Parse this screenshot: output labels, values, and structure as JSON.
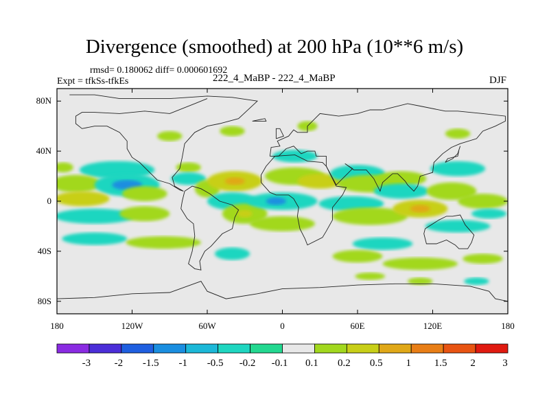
{
  "chart_data": {
    "type": "heatmap",
    "title": "Divergence (smoothed) at 200 hPa (10**6 m/s)",
    "stats_line": "rmsd= 0.180062 diff= 0.000601692",
    "experiment_label": "Expt = tfkSs-tfkEs",
    "case_label": "222_4_MaBP - 222_4_MaBP",
    "season_label": "DJF",
    "xlim": [
      -180,
      180
    ],
    "ylim": [
      -90,
      90
    ],
    "x_ticks": [
      {
        "value": -180,
        "label": "180"
      },
      {
        "value": -120,
        "label": "120W"
      },
      {
        "value": -60,
        "label": "60W"
      },
      {
        "value": 0,
        "label": "0"
      },
      {
        "value": 60,
        "label": "60E"
      },
      {
        "value": 120,
        "label": "120E"
      },
      {
        "value": 180,
        "label": "180"
      }
    ],
    "y_ticks": [
      {
        "value": 80,
        "label": "80N"
      },
      {
        "value": 40,
        "label": "40N"
      },
      {
        "value": 0,
        "label": "0"
      },
      {
        "value": -40,
        "label": "40S"
      },
      {
        "value": -80,
        "label": "80S"
      }
    ],
    "colorbar": {
      "labels": [
        "-3",
        "-2",
        "-1.5",
        "-1",
        "-0.5",
        "-0.2",
        "-0.1",
        "0.1",
        "0.2",
        "0.5",
        "1",
        "1.5",
        "2",
        "3"
      ],
      "colors": [
        "#8a2be2",
        "#4b2ed8",
        "#1f5fe0",
        "#1a8ee0",
        "#1cb8d8",
        "#1fd6c0",
        "#23d890",
        "#e8e8e8",
        "#a2d81e",
        "#c8cf18",
        "#e0a818",
        "#e87e16",
        "#e85412",
        "#e01a10"
      ]
    },
    "field_blobs": [
      {
        "lon": -175,
        "lat": 27,
        "rx": 8,
        "ry": 4,
        "level": "0.2"
      },
      {
        "lon": -132,
        "lat": 25,
        "rx": 30,
        "ry": 7,
        "level": "-0.2"
      },
      {
        "lon": -165,
        "lat": 14,
        "rx": 20,
        "ry": 7,
        "level": "0.2"
      },
      {
        "lon": -124,
        "lat": 13,
        "rx": 26,
        "ry": 9,
        "level": "-0.2"
      },
      {
        "lon": -124,
        "lat": 13,
        "rx": 12,
        "ry": 4,
        "level": "-1"
      },
      {
        "lon": -160,
        "lat": 2,
        "rx": 22,
        "ry": 6,
        "level": "0.5"
      },
      {
        "lon": -110,
        "lat": 6,
        "rx": 18,
        "ry": 6,
        "level": "0.2"
      },
      {
        "lon": -150,
        "lat": -12,
        "rx": 32,
        "ry": 6,
        "level": "-0.2"
      },
      {
        "lon": -110,
        "lat": -10,
        "rx": 20,
        "ry": 6,
        "level": "0.2"
      },
      {
        "lon": -150,
        "lat": -30,
        "rx": 26,
        "ry": 5,
        "level": "-0.2"
      },
      {
        "lon": -95,
        "lat": -33,
        "rx": 30,
        "ry": 5,
        "level": "0.2"
      },
      {
        "lon": -40,
        "lat": -42,
        "rx": 14,
        "ry": 5,
        "level": "-0.2"
      },
      {
        "lon": -75,
        "lat": 27,
        "rx": 10,
        "ry": 4,
        "level": "0.2"
      },
      {
        "lon": -75,
        "lat": 18,
        "rx": 14,
        "ry": 5,
        "level": "-0.2"
      },
      {
        "lon": -60,
        "lat": 10,
        "rx": 10,
        "ry": 7,
        "level": "0.2"
      },
      {
        "lon": -38,
        "lat": 16,
        "rx": 22,
        "ry": 8,
        "level": "0.5"
      },
      {
        "lon": -38,
        "lat": 16,
        "rx": 8,
        "ry": 3,
        "level": "1"
      },
      {
        "lon": -40,
        "lat": 0,
        "rx": 20,
        "ry": 7,
        "level": "-0.2"
      },
      {
        "lon": -30,
        "lat": -10,
        "rx": 18,
        "ry": 8,
        "level": "0.2"
      },
      {
        "lon": -30,
        "lat": -10,
        "rx": 6,
        "ry": 3,
        "level": "0.5"
      },
      {
        "lon": 0,
        "lat": 0,
        "rx": 28,
        "ry": 7,
        "level": "-0.2"
      },
      {
        "lon": -5,
        "lat": 0,
        "rx": 8,
        "ry": 3,
        "level": "-1"
      },
      {
        "lon": 0,
        "lat": -18,
        "rx": 26,
        "ry": 6,
        "level": "0.2"
      },
      {
        "lon": 10,
        "lat": 36,
        "rx": 18,
        "ry": 5,
        "level": "-0.2"
      },
      {
        "lon": 10,
        "lat": 20,
        "rx": 24,
        "ry": 7,
        "level": "0.2"
      },
      {
        "lon": 30,
        "lat": 16,
        "rx": 18,
        "ry": 6,
        "level": "0.5"
      },
      {
        "lon": 60,
        "lat": 22,
        "rx": 22,
        "ry": 7,
        "level": "-0.2"
      },
      {
        "lon": 70,
        "lat": 14,
        "rx": 26,
        "ry": 7,
        "level": "0.2"
      },
      {
        "lon": 95,
        "lat": 18,
        "rx": 20,
        "ry": 6,
        "level": "0.2"
      },
      {
        "lon": 95,
        "lat": 8,
        "rx": 22,
        "ry": 6,
        "level": "-0.2"
      },
      {
        "lon": 55,
        "lat": -2,
        "rx": 26,
        "ry": 6,
        "level": "-0.2"
      },
      {
        "lon": 70,
        "lat": -12,
        "rx": 30,
        "ry": 7,
        "level": "0.2"
      },
      {
        "lon": 110,
        "lat": -6,
        "rx": 22,
        "ry": 7,
        "level": "0.5"
      },
      {
        "lon": 110,
        "lat": -6,
        "rx": 8,
        "ry": 3,
        "level": "1"
      },
      {
        "lon": 135,
        "lat": 8,
        "rx": 20,
        "ry": 7,
        "level": "0.2"
      },
      {
        "lon": 140,
        "lat": 26,
        "rx": 22,
        "ry": 6,
        "level": "-0.2"
      },
      {
        "lon": 160,
        "lat": 0,
        "rx": 20,
        "ry": 6,
        "level": "0.2"
      },
      {
        "lon": 165,
        "lat": -10,
        "rx": 14,
        "ry": 4,
        "level": "-0.2"
      },
      {
        "lon": 140,
        "lat": -20,
        "rx": 26,
        "ry": 5,
        "level": "-0.2"
      },
      {
        "lon": 80,
        "lat": -34,
        "rx": 24,
        "ry": 5,
        "level": "-0.2"
      },
      {
        "lon": 60,
        "lat": -44,
        "rx": 20,
        "ry": 5,
        "level": "0.2"
      },
      {
        "lon": 110,
        "lat": -50,
        "rx": 30,
        "ry": 5,
        "level": "0.2"
      },
      {
        "lon": 160,
        "lat": -46,
        "rx": 16,
        "ry": 4,
        "level": "0.2"
      },
      {
        "lon": 70,
        "lat": -60,
        "rx": 12,
        "ry": 3,
        "level": "0.2"
      },
      {
        "lon": 110,
        "lat": -64,
        "rx": 10,
        "ry": 3,
        "level": "0.2"
      },
      {
        "lon": 155,
        "lat": -64,
        "rx": 10,
        "ry": 3,
        "level": "-0.2"
      },
      {
        "lon": -40,
        "lat": 56,
        "rx": 10,
        "ry": 4,
        "level": "0.2"
      },
      {
        "lon": 20,
        "lat": 60,
        "rx": 8,
        "ry": 4,
        "level": "0.2"
      },
      {
        "lon": -90,
        "lat": 52,
        "rx": 10,
        "ry": 4,
        "level": "0.2"
      },
      {
        "lon": 140,
        "lat": 54,
        "rx": 10,
        "ry": 4,
        "level": "0.2"
      }
    ],
    "coastlines": [
      [
        [
          -170,
          85
        ],
        [
          -150,
          85
        ],
        [
          -130,
          82
        ],
        [
          -90,
          82
        ],
        [
          -60,
          84
        ],
        [
          -40,
          83
        ],
        [
          -20,
          80
        ],
        [
          -35,
          66
        ],
        [
          -50,
          62
        ],
        [
          -60,
          60
        ],
        [
          -70,
          55
        ],
        [
          -78,
          46
        ],
        [
          -80,
          35
        ],
        [
          -82,
          26
        ],
        [
          -88,
          19
        ],
        [
          -86,
          12
        ],
        [
          -79,
          8
        ],
        [
          -82,
          9
        ],
        [
          -90,
          14
        ],
        [
          -100,
          17
        ],
        [
          -105,
          22
        ],
        [
          -114,
          31
        ],
        [
          -120,
          35
        ],
        [
          -124,
          42
        ],
        [
          -124,
          48
        ],
        [
          -130,
          55
        ],
        [
          -140,
          60
        ],
        [
          -150,
          60
        ],
        [
          -160,
          58
        ],
        [
          -165,
          62
        ],
        [
          -165,
          68
        ],
        [
          -160,
          71
        ],
        [
          -150,
          71
        ],
        [
          -130,
          70
        ],
        [
          -110,
          72
        ],
        [
          -90,
          70
        ],
        [
          -80,
          74
        ],
        [
          -70,
          78
        ],
        [
          -60,
          82
        ]
      ],
      [
        [
          -78,
          8
        ],
        [
          -80,
          0
        ],
        [
          -81,
          -6
        ],
        [
          -76,
          -14
        ],
        [
          -71,
          -18
        ],
        [
          -70,
          -28
        ],
        [
          -72,
          -40
        ],
        [
          -75,
          -50
        ],
        [
          -70,
          -54
        ],
        [
          -65,
          -55
        ],
        [
          -66,
          -48
        ],
        [
          -62,
          -40
        ],
        [
          -57,
          -36
        ],
        [
          -48,
          -26
        ],
        [
          -40,
          -22
        ],
        [
          -38,
          -13
        ],
        [
          -35,
          -7
        ],
        [
          -40,
          -3
        ],
        [
          -50,
          0
        ],
        [
          -58,
          6
        ],
        [
          -65,
          10
        ],
        [
          -72,
          12
        ],
        [
          -78,
          8
        ]
      ],
      [
        [
          -17,
          15
        ],
        [
          -17,
          21
        ],
        [
          -13,
          28
        ],
        [
          -6,
          36
        ],
        [
          10,
          37
        ],
        [
          20,
          32
        ],
        [
          32,
          31
        ],
        [
          35,
          28
        ],
        [
          43,
          12
        ],
        [
          51,
          11
        ],
        [
          48,
          5
        ],
        [
          40,
          -5
        ],
        [
          40,
          -15
        ],
        [
          35,
          -24
        ],
        [
          32,
          -29
        ],
        [
          20,
          -35
        ],
        [
          18,
          -30
        ],
        [
          14,
          -22
        ],
        [
          12,
          -12
        ],
        [
          13,
          -5
        ],
        [
          9,
          2
        ],
        [
          5,
          5
        ],
        [
          -5,
          5
        ],
        [
          -10,
          7
        ],
        [
          -17,
          15
        ]
      ],
      [
        [
          -10,
          36
        ],
        [
          -9,
          43
        ],
        [
          -2,
          44
        ],
        [
          -4,
          48
        ],
        [
          5,
          52
        ],
        [
          9,
          57
        ],
        [
          12,
          55
        ],
        [
          20,
          55
        ],
        [
          20,
          60
        ],
        [
          25,
          65
        ],
        [
          30,
          70
        ],
        [
          45,
          68
        ],
        [
          60,
          70
        ],
        [
          70,
          73
        ],
        [
          80,
          73
        ],
        [
          100,
          78
        ],
        [
          110,
          76
        ],
        [
          130,
          72
        ],
        [
          140,
          72
        ],
        [
          160,
          70
        ],
        [
          178,
          68
        ],
        [
          178,
          64
        ],
        [
          170,
          60
        ],
        [
          160,
          56
        ],
        [
          155,
          50
        ],
        [
          142,
          46
        ],
        [
          135,
          43
        ],
        [
          128,
          38
        ],
        [
          121,
          31
        ],
        [
          120,
          23
        ],
        [
          110,
          20
        ],
        [
          108,
          12
        ],
        [
          105,
          8
        ],
        [
          100,
          13
        ],
        [
          98,
          16
        ],
        [
          92,
          22
        ],
        [
          88,
          22
        ],
        [
          80,
          15
        ],
        [
          78,
          8
        ],
        [
          73,
          18
        ],
        [
          67,
          25
        ],
        [
          57,
          25
        ],
        [
          50,
          30
        ],
        [
          56,
          26
        ],
        [
          52,
          22
        ],
        [
          43,
          13
        ],
        [
          35,
          28
        ],
        [
          35,
          36
        ],
        [
          27,
          36
        ],
        [
          26,
          40
        ],
        [
          20,
          40
        ],
        [
          15,
          38
        ],
        [
          9,
          44
        ],
        [
          3,
          42
        ],
        [
          -3,
          36
        ],
        [
          -10,
          36
        ]
      ],
      [
        [
          114,
          -22
        ],
        [
          113,
          -26
        ],
        [
          115,
          -34
        ],
        [
          123,
          -34
        ],
        [
          131,
          -31
        ],
        [
          138,
          -35
        ],
        [
          141,
          -38
        ],
        [
          148,
          -38
        ],
        [
          151,
          -33
        ],
        [
          153,
          -27
        ],
        [
          146,
          -19
        ],
        [
          142,
          -11
        ],
        [
          136,
          -12
        ],
        [
          131,
          -12
        ],
        [
          125,
          -15
        ],
        [
          114,
          -22
        ]
      ],
      [
        [
          -180,
          -78
        ],
        [
          -150,
          -77
        ],
        [
          -120,
          -74
        ],
        [
          -90,
          -73
        ],
        [
          -65,
          -64
        ],
        [
          -60,
          -72
        ],
        [
          -45,
          -78
        ],
        [
          -20,
          -74
        ],
        [
          0,
          -70
        ],
        [
          30,
          -69
        ],
        [
          60,
          -67
        ],
        [
          90,
          -66
        ],
        [
          120,
          -66
        ],
        [
          150,
          -68
        ],
        [
          165,
          -72
        ],
        [
          170,
          -78
        ],
        [
          180,
          -80
        ]
      ],
      [
        [
          -5,
          50
        ],
        [
          -5,
          58
        ],
        [
          -2,
          58
        ],
        [
          1,
          52
        ],
        [
          -5,
          50
        ]
      ],
      [
        [
          -24,
          64
        ],
        [
          -14,
          66
        ],
        [
          -13,
          64
        ],
        [
          -24,
          64
        ]
      ],
      [
        [
          130,
          31
        ],
        [
          132,
          34
        ],
        [
          136,
          35
        ],
        [
          140,
          36
        ],
        [
          141,
          41
        ],
        [
          142,
          44
        ],
        [
          140,
          38
        ],
        [
          136,
          34
        ],
        [
          130,
          31
        ]
      ]
    ]
  }
}
